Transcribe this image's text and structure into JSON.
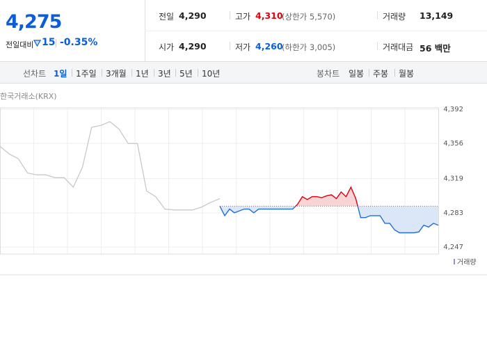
{
  "quote": {
    "price": "4,275",
    "change_label": "전일대비",
    "change": "15",
    "change_rate": "-0.35%"
  },
  "stats": [
    [
      {
        "label": "전일",
        "value": "4,290"
      },
      {
        "label": "고가",
        "value": "4,310",
        "note": "(상한가 5,570)",
        "color": "#e0000b"
      },
      {
        "label": "거래량",
        "value": "13,149"
      }
    ],
    [
      {
        "label": "시가",
        "value": "4,290"
      },
      {
        "label": "저가",
        "value": "4,260",
        "note": "(하한가 3,005)",
        "color": "#0b5ed7"
      },
      {
        "label": "거래대금",
        "value": "56 백만"
      }
    ]
  ],
  "tabs": {
    "line_label": "선차트",
    "line_periods": [
      "1일",
      "1주일",
      "3개월",
      "1년",
      "3년",
      "5년",
      "10년"
    ],
    "active": 0,
    "candle_label": "봉차트",
    "candle_periods": [
      "일봉",
      "주봉",
      "월봉"
    ]
  },
  "chart": {
    "type": "line",
    "source": "한국거래소(KRX)",
    "volume_label": "거래량",
    "ylim": [
      4247,
      4392
    ],
    "yticks": [
      {
        "value": 4392,
        "label": "4,392"
      },
      {
        "value": 4356,
        "label": "4,356"
      },
      {
        "value": 4319,
        "label": "4,319"
      },
      {
        "value": 4283,
        "label": "4,283"
      },
      {
        "value": 4247,
        "label": "4,247"
      }
    ],
    "baseline": 4290,
    "previous": {
      "color": "#c8c8c8",
      "values": [
        4353,
        4345,
        4340,
        4325,
        4323,
        4323,
        4320,
        4320,
        4310,
        4331,
        4373,
        4375,
        4379,
        4371,
        4356,
        4356,
        4306,
        4300,
        4287,
        4286,
        4286,
        4286,
        4289,
        4294,
        4298
      ]
    },
    "today": {
      "up_color": "#e0000b",
      "down_color": "#1f6fd6",
      "values": [
        4290,
        4280,
        4287,
        4283,
        4285,
        4287,
        4287,
        4283,
        4287,
        4287,
        4287,
        4287,
        4287,
        4287,
        4287,
        4287,
        4292,
        4300,
        4297,
        4300,
        4300,
        4299,
        4301,
        4302,
        4298,
        4305,
        4300,
        4310,
        4298,
        4278,
        4278,
        4280,
        4280,
        4280,
        4272,
        4272,
        4265,
        4262,
        4262,
        4262,
        4262,
        4263,
        4270,
        4268,
        4272,
        4270
      ]
    }
  }
}
